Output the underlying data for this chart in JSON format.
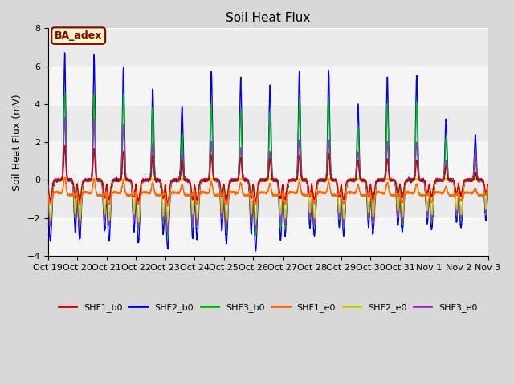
{
  "title": "Soil Heat Flux",
  "ylabel": "Soil Heat Flux (mV)",
  "ylim": [
    -4,
    8
  ],
  "yticks": [
    -4,
    -2,
    0,
    2,
    4,
    6,
    8
  ],
  "fig_bg_color": "#d8d8d8",
  "plot_bg_color": "#ebebeb",
  "annotation_text": "BA_adex",
  "annotation_color": "#8B0000",
  "annotation_bg": "#f5f5c8",
  "x_labels": [
    "Oct 19",
    "Oct 20",
    "Oct 21",
    "Oct 22",
    "Oct 23",
    "Oct 24",
    "Oct 25",
    "Oct 26",
    "Oct 27",
    "Oct 28",
    "Oct 29",
    "Oct 30",
    "Oct 31",
    "Nov 1",
    "Nov 2",
    "Nov 3"
  ],
  "series": [
    {
      "label": "SHF1_b0",
      "color": "#cc0000"
    },
    {
      "label": "SHF2_b0",
      "color": "#0000ee"
    },
    {
      "label": "SHF3_b0",
      "color": "#00bb00"
    },
    {
      "label": "SHF1_e0",
      "color": "#ff6600"
    },
    {
      "label": "SHF2_e0",
      "color": "#cccc00"
    },
    {
      "label": "SHF3_e0",
      "color": "#9933bb"
    }
  ],
  "n_days": 15,
  "n_per_day": 288
}
